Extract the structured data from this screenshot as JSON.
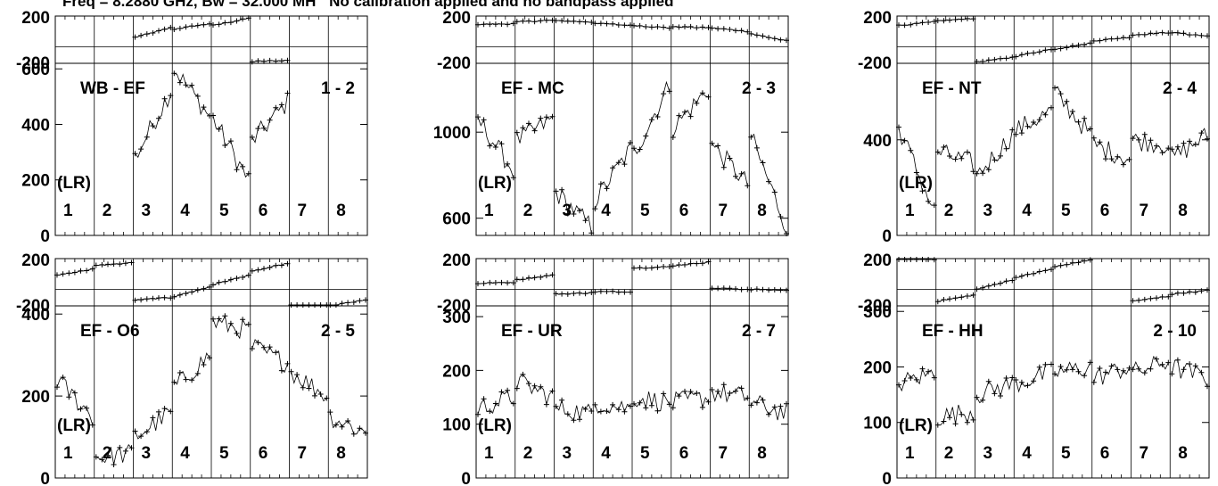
{
  "header": {
    "freq_text": "Freq = 8.2880 GHz, Bw = 32.000 MH",
    "calibration_text": "No calibration applied and no bandpass applied"
  },
  "colors": {
    "data": "#000000",
    "background": "#ffffff"
  },
  "chart_data": [
    {
      "type": "scatter",
      "title": "WB - EF",
      "baseline": "1 - 2",
      "pol": "(LR)",
      "channels": [
        "1",
        "2",
        "3",
        "4",
        "5",
        "6",
        "7",
        "8"
      ],
      "phase": {
        "yticks": [
          "200",
          "-200"
        ],
        "ylim": [
          -200,
          200
        ],
        "values": [
          null,
          null,
          [
            20,
            100
          ],
          [
            90,
            135
          ],
          [
            120,
            180
          ],
          [
            -185,
            -175
          ],
          null,
          null
        ]
      },
      "amp": {
        "yticks": [
          "600",
          "400",
          "200",
          "0"
        ],
        "ylim": [
          0,
          620
        ],
        "yvals": [
          600,
          400,
          200,
          0
        ],
        "values": [
          null,
          null,
          [
            280,
            520
          ],
          [
            600,
            430
          ],
          [
            420,
            200
          ],
          [
            340,
            480
          ],
          null,
          null
        ]
      }
    },
    {
      "type": "scatter",
      "title": "EF - MC",
      "baseline": "2 - 3",
      "pol": "(LR)",
      "channels": [
        "1",
        "2",
        "3",
        "4",
        "5",
        "6",
        "7",
        "8"
      ],
      "phase": {
        "yticks": [
          "200",
          "-200"
        ],
        "ylim": [
          -200,
          200
        ],
        "values": [
          [
            130,
            135
          ],
          [
            150,
            165
          ],
          [
            160,
            150
          ],
          [
            140,
            120
          ],
          [
            120,
            100
          ],
          [
            110,
            100
          ],
          [
            100,
            70
          ],
          [
            50,
            -10
          ]
        ]
      },
      "amp": {
        "yticks": [
          "1000",
          "600"
        ],
        "ylim": [
          520,
          1320
        ],
        "yvals": [
          1000,
          600
        ],
        "values": [
          [
            1060,
            820
          ],
          [
            960,
            1060
          ],
          [
            720,
            560
          ],
          [
            680,
            920
          ],
          [
            900,
            1220
          ],
          [
            1020,
            1200
          ],
          [
            940,
            760
          ],
          [
            980,
            560
          ]
        ]
      }
    },
    {
      "type": "scatter",
      "title": "EF - NT",
      "baseline": "2 - 4",
      "pol": "(LR)",
      "channels": [
        "1",
        "2",
        "3",
        "4",
        "5",
        "6",
        "7",
        "8"
      ],
      "phase": {
        "yticks": [
          "200",
          "-200"
        ],
        "ylim": [
          -200,
          200
        ],
        "values": [
          [
            120,
            150
          ],
          [
            160,
            180
          ],
          [
            -190,
            -150
          ],
          [
            -140,
            -80
          ],
          [
            -80,
            -30
          ],
          [
            -10,
            20
          ],
          [
            40,
            60
          ],
          [
            60,
            30
          ]
        ]
      },
      "amp": {
        "yticks": [
          "400",
          "0"
        ],
        "ylim": [
          0,
          720
        ],
        "yvals": [
          400,
          0
        ],
        "values": [
          [
            450,
            100
          ],
          [
            350,
            300
          ],
          [
            250,
            420
          ],
          [
            440,
            520
          ],
          [
            600,
            420
          ],
          [
            380,
            320
          ],
          [
            400,
            380
          ],
          [
            320,
            420
          ]
        ]
      }
    },
    {
      "type": "scatter",
      "title": "EF - O6",
      "baseline": "2 - 5",
      "pol": "(LR)",
      "channels": [
        "1",
        "2",
        "3",
        "4",
        "5",
        "6",
        "7",
        "8"
      ],
      "phase": {
        "yticks": [
          "200",
          "-200"
        ],
        "ylim": [
          -200,
          200
        ],
        "values": [
          [
            60,
            110
          ],
          [
            140,
            165
          ],
          [
            -150,
            -130
          ],
          [
            -120,
            -40
          ],
          [
            -20,
            60
          ],
          [
            90,
            160
          ],
          [
            -230,
            -210
          ],
          [
            -200,
            -150
          ]
        ]
      },
      "amp": {
        "yticks": [
          "400",
          "200",
          "0"
        ],
        "ylim": [
          0,
          420
        ],
        "yvals": [
          400,
          200,
          0
        ],
        "values": [
          [
            240,
            150
          ],
          [
            50,
            60
          ],
          [
            100,
            160
          ],
          [
            220,
            300
          ],
          [
            380,
            360
          ],
          [
            320,
            280
          ],
          [
            260,
            200
          ],
          [
            150,
            110
          ]
        ]
      }
    },
    {
      "type": "scatter",
      "title": "EF - UR",
      "baseline": "2 - 7",
      "pol": "(LR)",
      "channels": [
        "1",
        "2",
        "3",
        "4",
        "5",
        "6",
        "7",
        "8"
      ],
      "phase": {
        "yticks": [
          "200",
          "-200"
        ],
        "ylim": [
          -200,
          200
        ],
        "values": [
          [
            -10,
            0
          ],
          [
            20,
            60
          ],
          [
            -100,
            -90
          ],
          [
            -80,
            -80
          ],
          [
            120,
            130
          ],
          [
            140,
            170
          ],
          [
            -50,
            -60
          ],
          [
            -60,
            -70
          ]
        ]
      },
      "amp": {
        "yticks": [
          "300",
          "200",
          "100",
          "0"
        ],
        "ylim": [
          0,
          320
        ],
        "yvals": [
          300,
          200,
          100,
          0
        ],
        "values": [
          [
            130,
            150
          ],
          [
            180,
            150
          ],
          [
            130,
            120
          ],
          [
            140,
            130
          ],
          [
            150,
            140
          ],
          [
            140,
            150
          ],
          [
            160,
            150
          ],
          [
            140,
            120
          ]
        ]
      }
    },
    {
      "type": "scatter",
      "title": "EF - HH",
      "baseline": "2 - 10",
      "pol": "(LR)",
      "channels": [
        "1",
        "2",
        "3",
        "4",
        "5",
        "6",
        "7",
        "8"
      ],
      "phase": {
        "yticks": [
          "200",
          "-200"
        ],
        "ylim": [
          -200,
          200
        ],
        "values": [
          [
            200,
            195
          ],
          [
            -160,
            -110
          ],
          [
            -60,
            20
          ],
          [
            40,
            110
          ],
          [
            130,
            190
          ],
          [
            null,
            null
          ],
          [
            -160,
            -120
          ],
          [
            -100,
            -70
          ]
        ]
      },
      "amp": {
        "yticks": [
          "300",
          "200",
          "100",
          "0"
        ],
        "ylim": [
          0,
          310
        ],
        "yvals": [
          300,
          200,
          100,
          0
        ],
        "values": [
          [
            170,
            190
          ],
          [
            110,
            120
          ],
          [
            150,
            170
          ],
          [
            170,
            190
          ],
          [
            190,
            200
          ],
          [
            180,
            200
          ],
          [
            190,
            210
          ],
          [
            200,
            180
          ]
        ]
      }
    }
  ]
}
